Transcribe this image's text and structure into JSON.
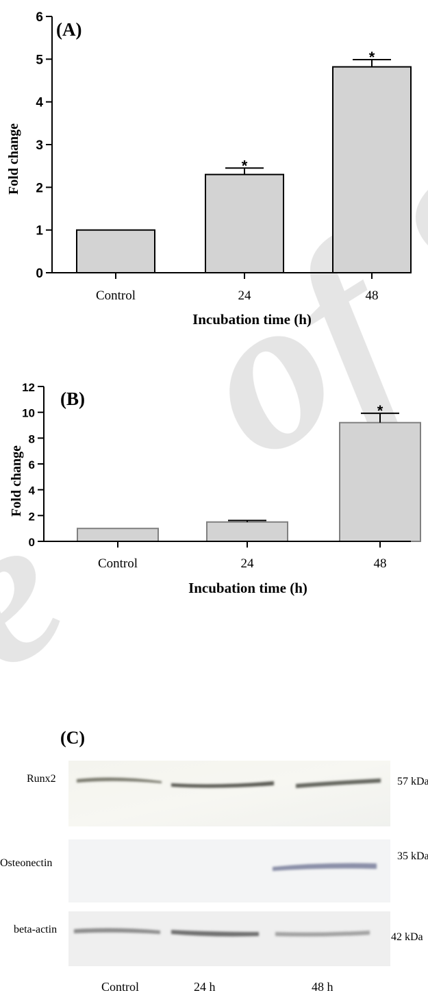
{
  "chart_data": [
    {
      "type": "bar",
      "panel_label": "(A)",
      "categories": [
        "Control",
        "24",
        "48"
      ],
      "values": [
        1.0,
        2.3,
        4.82
      ],
      "errors": [
        0.0,
        0.15,
        0.17
      ],
      "significance": [
        "",
        "*",
        "*"
      ],
      "xlabel": "Incubation time (h)",
      "ylabel": "Fold change",
      "yticks": [
        "0",
        "1",
        "2",
        "3",
        "4",
        "5",
        "6"
      ],
      "ylim": [
        0,
        6
      ]
    },
    {
      "type": "bar",
      "panel_label": "(B)",
      "categories": [
        "Control",
        "24",
        "48"
      ],
      "values": [
        1.0,
        1.5,
        9.2
      ],
      "errors": [
        0.0,
        0.12,
        0.72
      ],
      "significance": [
        "",
        "",
        "*"
      ],
      "xlabel": "Incubation time (h)",
      "ylabel": "Fold change",
      "yticks": [
        "0",
        "2",
        "4",
        "6",
        "8",
        "10",
        "12"
      ],
      "ylim": [
        0,
        12
      ]
    }
  ],
  "blot": {
    "panel_label": "(C)",
    "rows": [
      {
        "protein": "Runx2",
        "size": "57 kDa"
      },
      {
        "protein": "Osteonectin",
        "size": "35 kDa"
      },
      {
        "protein": "beta-actin",
        "size": "42 kDa"
      }
    ],
    "lanes": [
      "Control",
      "24 h",
      "48 h"
    ]
  },
  "colors": {
    "bar_fill": "#d3d3d3",
    "axis": "#000000",
    "panel_b_bar_stroke": "#808080"
  }
}
